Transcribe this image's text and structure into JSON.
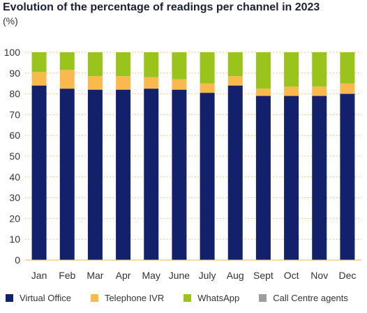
{
  "chart_data": {
    "type": "bar",
    "stacked": true,
    "title": "Evolution of the percentage of readings per channel in 2023",
    "subtitle": "(%)",
    "categories": [
      "Jan",
      "Feb",
      "Mar",
      "Apr",
      "May",
      "June",
      "July",
      "Aug",
      "Sept",
      "Oct",
      "Nov",
      "Dec"
    ],
    "yticks": [
      0,
      10,
      20,
      30,
      40,
      50,
      60,
      70,
      80,
      90,
      100
    ],
    "ylim": [
      0,
      100
    ],
    "grid": true,
    "legend_position": "bottom",
    "series": [
      {
        "name": "Virtual Office",
        "color": "#13206b",
        "values": [
          84,
          82.5,
          82,
          82,
          82.5,
          82,
          80.5,
          84,
          79,
          79,
          79,
          80
        ]
      },
      {
        "name": "Telephone IVR",
        "color": "#f9b94d",
        "values": [
          6.5,
          9,
          6.5,
          6.5,
          5.5,
          5,
          4.5,
          4.5,
          3.5,
          4.5,
          4.5,
          5
        ]
      },
      {
        "name": "WhatsApp",
        "color": "#9ac31c",
        "values": [
          9.5,
          8.5,
          11.5,
          11.5,
          12,
          13,
          15,
          11.5,
          17.5,
          16.5,
          16.5,
          15
        ]
      },
      {
        "name": "Call Centre agents",
        "color": "#9e9e9e",
        "values": [
          0,
          0,
          0,
          0,
          0,
          0,
          0,
          0,
          0,
          0,
          0,
          0
        ]
      }
    ]
  }
}
